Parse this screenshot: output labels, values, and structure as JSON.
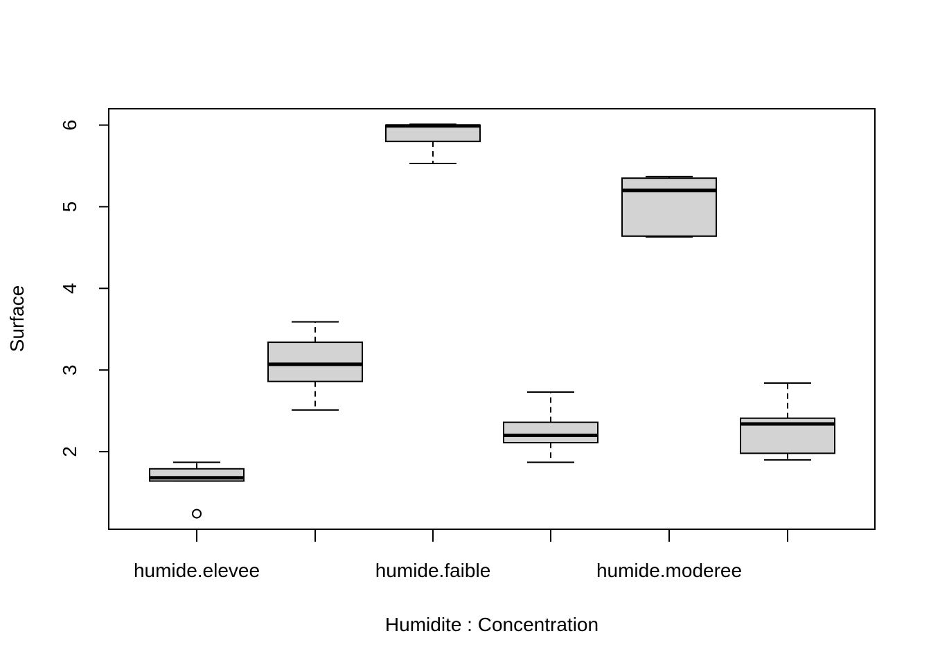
{
  "chart_data": {
    "type": "box",
    "xlabel": "Humidite : Concentration",
    "ylabel": "Surface",
    "ylim": [
      1.05,
      6.2
    ],
    "yticks": [
      2,
      3,
      4,
      5,
      6
    ],
    "category_labels_shown": [
      "humide.elevee",
      "",
      "humide.faible",
      "",
      "humide.moderee",
      ""
    ],
    "boxes": [
      {
        "lower_whisker": 1.64,
        "q1": 1.64,
        "median": 1.68,
        "q3": 1.79,
        "upper_whisker": 1.87,
        "outliers": [
          1.24
        ]
      },
      {
        "lower_whisker": 2.51,
        "q1": 2.86,
        "median": 3.07,
        "q3": 3.34,
        "upper_whisker": 3.59,
        "outliers": []
      },
      {
        "lower_whisker": 5.53,
        "q1": 5.8,
        "median": 5.99,
        "q3": 6.0,
        "upper_whisker": 6.01,
        "outliers": []
      },
      {
        "lower_whisker": 1.87,
        "q1": 2.11,
        "median": 2.2,
        "q3": 2.36,
        "upper_whisker": 2.73,
        "outliers": []
      },
      {
        "lower_whisker": 4.63,
        "q1": 4.64,
        "median": 5.2,
        "q3": 5.35,
        "upper_whisker": 5.37,
        "outliers": []
      },
      {
        "lower_whisker": 1.9,
        "q1": 1.98,
        "median": 2.34,
        "q3": 2.41,
        "upper_whisker": 2.84,
        "outliers": []
      }
    ],
    "box_fill": "#d3d3d3",
    "line_color": "#000000"
  }
}
